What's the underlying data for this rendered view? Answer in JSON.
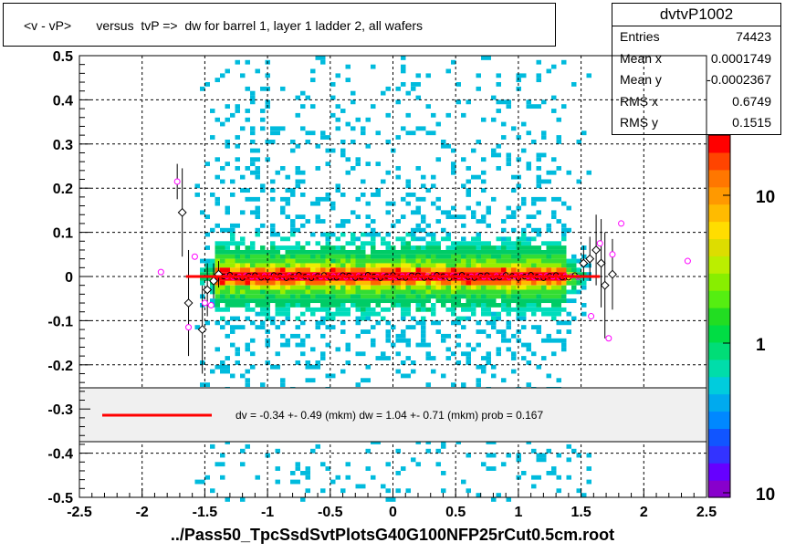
{
  "title": "<v - vP>       versus  tvP =>  dw for barrel 1, layer 1 ladder 2, all wafers",
  "stats": {
    "name": "dvtvP1002",
    "rows": [
      {
        "label": "Entries",
        "value": "74423"
      },
      {
        "label": "Mean x",
        "value": "0.0001749"
      },
      {
        "label": "Mean y",
        "value": "-0.0002367"
      },
      {
        "label": "RMS x",
        "value": "0.6749"
      },
      {
        "label": "RMS y",
        "value": "0.1515"
      }
    ]
  },
  "fit_legend": "dv =   -0.34 +-  0.49 (mkm) dw =    1.04 +-  0.71 (mkm) prob = 0.167",
  "x_title": "../Pass50_TpcSsdSvtPlotsG40G100NFP25rCut0.5cm.root",
  "colors": {
    "fit_line": "#ff0000",
    "profile_black": "#000000",
    "profile_magenta": "#ff00ff"
  },
  "chart_data": {
    "type": "heatmap",
    "xlim": [
      -2.5,
      2.5
    ],
    "ylim": [
      -0.5,
      0.5
    ],
    "x_ticks": [
      "-2.5",
      "-2",
      "-1.5",
      "-1",
      "-0.5",
      "0",
      "0.5",
      "1",
      "1.5",
      "2",
      "2.5"
    ],
    "y_ticks": [
      "-0.5",
      "-0.4",
      "-0.3",
      "-0.2",
      "-0.1",
      "0",
      "0.1",
      "0.2",
      "0.3",
      "0.4",
      "0.5"
    ],
    "z_scale": "log",
    "z_ticks": [
      "10",
      "1",
      "10"
    ],
    "grid": true,
    "fit_line": {
      "x": [
        -1.65,
        1.65
      ],
      "y": [
        0.0,
        0.0
      ]
    },
    "profile_black": [
      {
        "x": -1.68,
        "y": 0.145,
        "err": 0.1
      },
      {
        "x": -1.63,
        "y": -0.06,
        "err": 0.12
      },
      {
        "x": -1.52,
        "y": -0.12,
        "err": 0.1
      },
      {
        "x": -1.48,
        "y": -0.03,
        "err": 0.06
      },
      {
        "x": -1.43,
        "y": -0.01,
        "err": 0.04
      },
      {
        "x": -1.39,
        "y": 0.005,
        "err": 0.03
      },
      {
        "x": 1.52,
        "y": 0.03,
        "err": 0.04
      },
      {
        "x": 1.57,
        "y": 0.04,
        "err": 0.05
      },
      {
        "x": 1.62,
        "y": 0.06,
        "err": 0.08
      },
      {
        "x": 1.66,
        "y": 0.03,
        "err": 0.1
      },
      {
        "x": 1.69,
        "y": -0.02,
        "err": 0.12
      },
      {
        "x": 1.75,
        "y": 0.005,
        "err": 0.08
      }
    ],
    "profile_black_central": {
      "x_start": -1.35,
      "x_end": 1.45,
      "step": 0.05,
      "amplitude": 0.004
    },
    "profile_magenta": [
      {
        "x": -1.85,
        "y": 0.01
      },
      {
        "x": -1.72,
        "y": 0.215,
        "err": 0.04
      },
      {
        "x": -1.63,
        "y": -0.115
      },
      {
        "x": -1.58,
        "y": 0.045
      },
      {
        "x": -1.5,
        "y": -0.06
      },
      {
        "x": -1.45,
        "y": -0.065
      },
      {
        "x": 1.58,
        "y": -0.09
      },
      {
        "x": 1.65,
        "y": 0.075
      },
      {
        "x": 1.72,
        "y": -0.14
      },
      {
        "x": 1.75,
        "y": 0.05
      },
      {
        "x": 1.82,
        "y": 0.12
      },
      {
        "x": 2.35,
        "y": 0.035
      }
    ]
  }
}
